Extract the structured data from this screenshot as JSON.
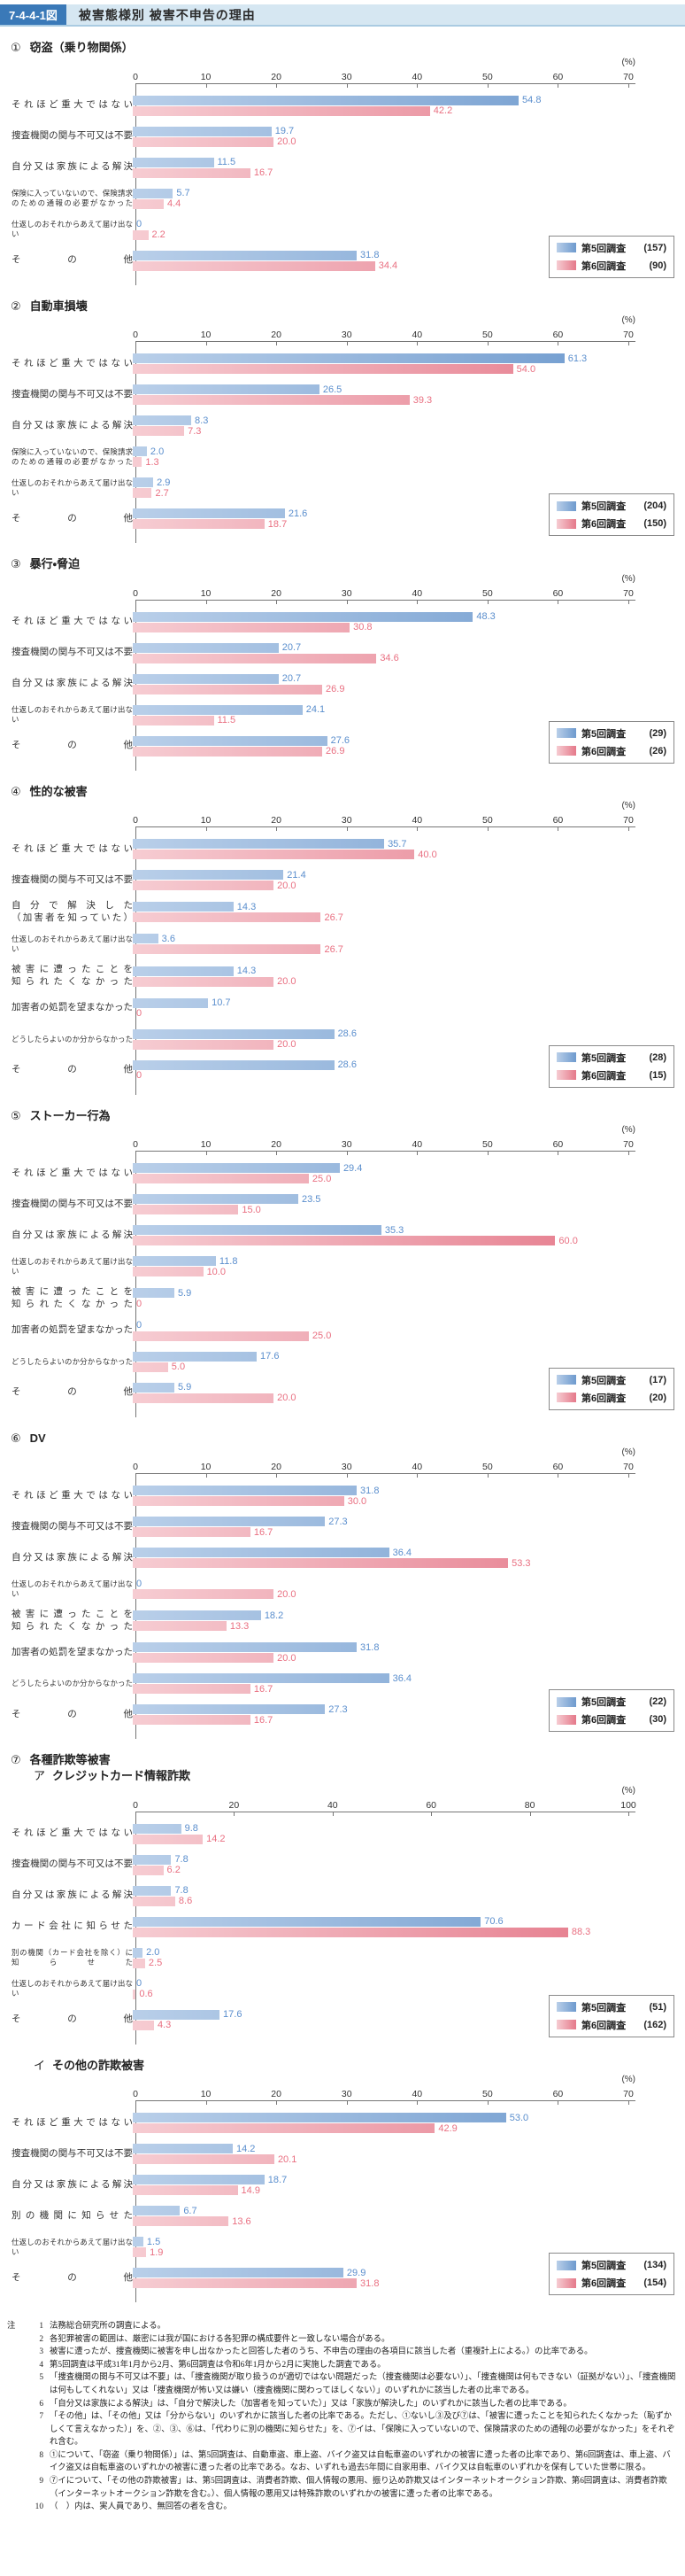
{
  "header": {
    "badge": "7-4-4-1図",
    "title": "被害態様別 被害不申告の理由"
  },
  "colors": {
    "header_badge": "#3a79b8",
    "header_bg": "#d6e7f2",
    "series5_light": "#b9cfe9",
    "series5_dark": "#6e9ace",
    "series6_light": "#f6ccd2",
    "series6_dark": "#e5798a",
    "value5_text": "#5a8ecd",
    "value6_text": "#e96f81",
    "axis": "#767676"
  },
  "chart_data": {
    "note": "see charts[] — type bar (horizontal, grouped), two series per chart"
  },
  "charts": [
    {
      "number": "①",
      "title": "窃盗（乗り物関係）",
      "type": "bar",
      "axis": {
        "max": 70,
        "ticks": [
          0,
          10,
          20,
          30,
          40,
          50,
          60,
          70
        ],
        "unit": "(%)"
      },
      "legend": [
        {
          "label": "第5回調査",
          "count": "(157)"
        },
        {
          "label": "第6回調査",
          "count": "(90)"
        }
      ],
      "rows": [
        {
          "label": [
            "それほど重大ではない"
          ],
          "values": [
            "54.8",
            "42.2"
          ]
        },
        {
          "label": [
            "捜査機関の関与不可又は不要"
          ],
          "values": [
            "19.7",
            "20.0"
          ]
        },
        {
          "label": [
            "自分又は家族による解決"
          ],
          "values": [
            "11.5",
            "16.7"
          ]
        },
        {
          "label": [
            "保険に入っていないので、保険請求",
            "のための通報の必要がなかった"
          ],
          "values": [
            "5.7",
            "4.4"
          ]
        },
        {
          "label": [
            "仕返しのおそれからあえて届け出ない"
          ],
          "values": [
            "0",
            "2.2"
          ]
        },
        {
          "label": [
            "その他"
          ],
          "values": [
            "31.8",
            "34.4"
          ]
        }
      ]
    },
    {
      "number": "②",
      "title": "自動車損壊",
      "type": "bar",
      "axis": {
        "max": 70,
        "ticks": [
          0,
          10,
          20,
          30,
          40,
          50,
          60,
          70
        ],
        "unit": "(%)"
      },
      "legend": [
        {
          "label": "第5回調査",
          "count": "(204)"
        },
        {
          "label": "第6回調査",
          "count": "(150)"
        }
      ],
      "rows": [
        {
          "label": [
            "それほど重大ではない"
          ],
          "values": [
            "61.3",
            "54.0"
          ]
        },
        {
          "label": [
            "捜査機関の関与不可又は不要"
          ],
          "values": [
            "26.5",
            "39.3"
          ]
        },
        {
          "label": [
            "自分又は家族による解決"
          ],
          "values": [
            "8.3",
            "7.3"
          ]
        },
        {
          "label": [
            "保険に入っていないので、保険請求",
            "のための通報の必要がなかった"
          ],
          "values": [
            "2.0",
            "1.3"
          ]
        },
        {
          "label": [
            "仕返しのおそれからあえて届け出ない"
          ],
          "values": [
            "2.9",
            "2.7"
          ]
        },
        {
          "label": [
            "その他"
          ],
          "values": [
            "21.6",
            "18.7"
          ]
        }
      ]
    },
    {
      "number": "③",
      "title": "暴行・脅迫",
      "type": "bar",
      "axis": {
        "max": 70,
        "ticks": [
          0,
          10,
          20,
          30,
          40,
          50,
          60,
          70
        ],
        "unit": "(%)"
      },
      "legend": [
        {
          "label": "第5回調査",
          "count": "(29)"
        },
        {
          "label": "第6回調査",
          "count": "(26)"
        }
      ],
      "rows": [
        {
          "label": [
            "それほど重大ではない"
          ],
          "values": [
            "48.3",
            "30.8"
          ]
        },
        {
          "label": [
            "捜査機関の関与不可又は不要"
          ],
          "values": [
            "20.7",
            "34.6"
          ]
        },
        {
          "label": [
            "自分又は家族による解決"
          ],
          "values": [
            "20.7",
            "26.9"
          ]
        },
        {
          "label": [
            "仕返しのおそれからあえて届け出ない"
          ],
          "values": [
            "24.1",
            "11.5"
          ]
        },
        {
          "label": [
            "その他"
          ],
          "values": [
            "27.6",
            "26.9"
          ]
        }
      ]
    },
    {
      "number": "④",
      "title": "性的な被害",
      "type": "bar",
      "axis": {
        "max": 70,
        "ticks": [
          0,
          10,
          20,
          30,
          40,
          50,
          60,
          70
        ],
        "unit": "(%)"
      },
      "legend": [
        {
          "label": "第5回調査",
          "count": "(28)"
        },
        {
          "label": "第6回調査",
          "count": "(15)"
        }
      ],
      "rows": [
        {
          "label": [
            "それほど重大ではない"
          ],
          "values": [
            "35.7",
            "40.0"
          ]
        },
        {
          "label": [
            "捜査機関の関与不可又は不要"
          ],
          "values": [
            "21.4",
            "20.0"
          ]
        },
        {
          "label": [
            "自分で解決した",
            "（加害者を知っていた）"
          ],
          "values": [
            "14.3",
            "26.7"
          ]
        },
        {
          "label": [
            "仕返しのおそれからあえて届け出ない"
          ],
          "values": [
            "3.6",
            "26.7"
          ]
        },
        {
          "label": [
            "被害に遭ったことを",
            "知られたくなかった"
          ],
          "values": [
            "14.3",
            "20.0"
          ]
        },
        {
          "label": [
            "加害者の処罰を望まなかった"
          ],
          "values": [
            "10.7",
            "0"
          ]
        },
        {
          "label": [
            "どうしたらよいのか分からなかった"
          ],
          "values": [
            "28.6",
            "20.0"
          ]
        },
        {
          "label": [
            "その他"
          ],
          "values": [
            "28.6",
            "0"
          ]
        }
      ]
    },
    {
      "number": "⑤",
      "title": "ストーカー行為",
      "type": "bar",
      "axis": {
        "max": 70,
        "ticks": [
          0,
          10,
          20,
          30,
          40,
          50,
          60,
          70
        ],
        "unit": "(%)"
      },
      "legend": [
        {
          "label": "第5回調査",
          "count": "(17)"
        },
        {
          "label": "第6回調査",
          "count": "(20)"
        }
      ],
      "rows": [
        {
          "label": [
            "それほど重大ではない"
          ],
          "values": [
            "29.4",
            "25.0"
          ]
        },
        {
          "label": [
            "捜査機関の関与不可又は不要"
          ],
          "values": [
            "23.5",
            "15.0"
          ]
        },
        {
          "label": [
            "自分又は家族による解決"
          ],
          "values": [
            "35.3",
            "60.0"
          ]
        },
        {
          "label": [
            "仕返しのおそれからあえて届け出ない"
          ],
          "values": [
            "11.8",
            "10.0"
          ]
        },
        {
          "label": [
            "被害に遭ったことを",
            "知られたくなかった"
          ],
          "values": [
            "5.9",
            "0"
          ]
        },
        {
          "label": [
            "加害者の処罰を望まなかった"
          ],
          "values": [
            "0",
            "25.0"
          ]
        },
        {
          "label": [
            "どうしたらよいのか分からなかった"
          ],
          "values": [
            "17.6",
            "5.0"
          ]
        },
        {
          "label": [
            "その他"
          ],
          "values": [
            "5.9",
            "20.0"
          ]
        }
      ]
    },
    {
      "number": "⑥",
      "title": "DV",
      "type": "bar",
      "axis": {
        "max": 70,
        "ticks": [
          0,
          10,
          20,
          30,
          40,
          50,
          60,
          70
        ],
        "unit": "(%)"
      },
      "legend": [
        {
          "label": "第5回調査",
          "count": "(22)"
        },
        {
          "label": "第6回調査",
          "count": "(30)"
        }
      ],
      "rows": [
        {
          "label": [
            "それほど重大ではない"
          ],
          "values": [
            "31.8",
            "30.0"
          ]
        },
        {
          "label": [
            "捜査機関の関与不可又は不要"
          ],
          "values": [
            "27.3",
            "16.7"
          ]
        },
        {
          "label": [
            "自分又は家族による解決"
          ],
          "values": [
            "36.4",
            "53.3"
          ]
        },
        {
          "label": [
            "仕返しのおそれからあえて届け出ない"
          ],
          "values": [
            "0",
            "20.0"
          ]
        },
        {
          "label": [
            "被害に遭ったことを",
            "知られたくなかった"
          ],
          "values": [
            "18.2",
            "13.3"
          ]
        },
        {
          "label": [
            "加害者の処罰を望まなかった"
          ],
          "values": [
            "31.8",
            "20.0"
          ]
        },
        {
          "label": [
            "どうしたらよいのか分からなかった"
          ],
          "values": [
            "36.4",
            "16.7"
          ]
        },
        {
          "label": [
            "その他"
          ],
          "values": [
            "27.3",
            "16.7"
          ]
        }
      ]
    },
    {
      "number": "⑦",
      "group": "各種詐欺等被害",
      "sub": "ア",
      "title": "クレジットカード情報詐欺",
      "type": "bar",
      "axis": {
        "max": 100,
        "ticks": [
          0,
          20,
          40,
          60,
          80,
          100
        ],
        "unit": "(%)"
      },
      "legend": [
        {
          "label": "第5回調査",
          "count": "(51)"
        },
        {
          "label": "第6回調査",
          "count": "(162)"
        }
      ],
      "rows": [
        {
          "label": [
            "それほど重大ではない"
          ],
          "values": [
            "9.8",
            "14.2"
          ]
        },
        {
          "label": [
            "捜査機関の関与不可又は不要"
          ],
          "values": [
            "7.8",
            "6.2"
          ]
        },
        {
          "label": [
            "自分又は家族による解決"
          ],
          "values": [
            "7.8",
            "8.6"
          ]
        },
        {
          "label": [
            "カード会社に知らせた"
          ],
          "values": [
            "70.6",
            "88.3"
          ]
        },
        {
          "label": [
            "別の機関（カード会社を除く）に",
            "知らせた"
          ],
          "values": [
            "2.0",
            "2.5"
          ]
        },
        {
          "label": [
            "仕返しのおそれからあえて届け出ない"
          ],
          "values": [
            "0",
            "0.6"
          ]
        },
        {
          "label": [
            "その他"
          ],
          "values": [
            "17.6",
            "4.3"
          ]
        }
      ]
    },
    {
      "number": "",
      "sub": "イ",
      "title": "その他の詐欺被害",
      "type": "bar",
      "axis": {
        "max": 70,
        "ticks": [
          0,
          10,
          20,
          30,
          40,
          50,
          60,
          70
        ],
        "unit": "(%)"
      },
      "legend": [
        {
          "label": "第5回調査",
          "count": "(134)"
        },
        {
          "label": "第6回調査",
          "count": "(154)"
        }
      ],
      "rows": [
        {
          "label": [
            "それほど重大ではない"
          ],
          "values": [
            "53.0",
            "42.9"
          ]
        },
        {
          "label": [
            "捜査機関の関与不可又は不要"
          ],
          "values": [
            "14.2",
            "20.1"
          ]
        },
        {
          "label": [
            "自分又は家族による解決"
          ],
          "values": [
            "18.7",
            "14.9"
          ]
        },
        {
          "label": [
            "別の機関に知らせた"
          ],
          "values": [
            "6.7",
            "13.6"
          ]
        },
        {
          "label": [
            "仕返しのおそれからあえて届け出ない"
          ],
          "values": [
            "1.5",
            "1.9"
          ]
        },
        {
          "label": [
            "その他"
          ],
          "values": [
            "29.9",
            "31.8"
          ]
        }
      ]
    }
  ],
  "notes": {
    "label": "注",
    "items": [
      {
        "num": "1",
        "text": "法務総合研究所の調査による。"
      },
      {
        "num": "2",
        "text": "各犯罪被害の範囲は、厳密には我が国における各犯罪の構成要件と一致しない場合がある。"
      },
      {
        "num": "3",
        "text": "被害に遭ったが、捜査機関に被害を申し出なかったと回答した者のうち、不申告の理由の各項目に該当した者（重複計上による。）の比率である。"
      },
      {
        "num": "4",
        "text": "第5回調査は平成31年1月から2月、第6回調査は令和6年1月から2月に実施した調査である。"
      },
      {
        "num": "5",
        "text": "「捜査機関の関与不可又は不要」は、「捜査機関が取り扱うのが適切ではない問題だった（捜査機関は必要ない）」、「捜査機関は何もできない（証拠がない）」、「捜査機関は何もしてくれない」又は「捜査機関が怖い又は嫌い（捜査機関に関わってほしくない）」のいずれかに該当した者の比率である。"
      },
      {
        "num": "6",
        "text": "「自分又は家族による解決」は、「自分で解決した（加害者を知っていた）」又は「家族が解決した」のいずれかに該当した者の比率である。"
      },
      {
        "num": "7",
        "text": "「その他」は、「その他」又は「分からない」のいずれかに該当した者の比率である。ただし、①ないし③及び⑦は、「被害に遭ったことを知られたくなかった（恥ずかしくて言えなかった）」を、②、③、⑥は、「代わりに別の機関に知らせた」を、⑦イは、「保険に入っていないので、保険請求のための通報の必要がなかった」をそれぞれ含む。"
      },
      {
        "num": "8",
        "text": "①について、「窃盗（乗り物関係）」は、第5回調査は、自動車盗、車上盗、バイク盗又は自転車盗のいずれかの被害に遭った者の比率であり、第6回調査は、車上盗、バイク盗又は自転車盗のいずれかの被害に遭った者の比率である。なお、いずれも過去5年間に自家用車、バイク又は自転車のいずれかを保有していた世帯に限る。"
      },
      {
        "num": "9",
        "text": "⑦イについて、「その他の詐欺被害」は、第5回調査は、消費者詐欺、個人情報の悪用、振り込め詐欺又はインターネットオークション詐欺、第6回調査は、消費者詐欺（インターネットオークション詐欺を含む。）、個人情報の悪用又は特殊詐欺のいずれかの被害に遭った者の比率である。"
      },
      {
        "num": "10",
        "text": "（　）内は、実人員であり、無回答の者を含む。"
      }
    ]
  }
}
